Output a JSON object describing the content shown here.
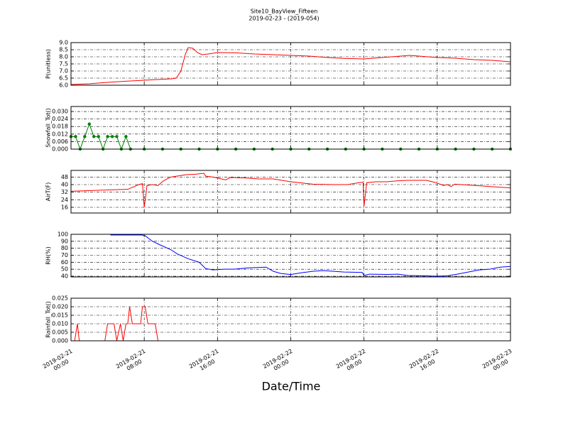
{
  "chart_data": [
    {
      "type": "line",
      "title": "Site10_BayView_Fifteen",
      "subtitle": "2019-02-23 - (2019-054)",
      "ylabel": "P(unitless)",
      "color": "#ff0000",
      "x": [
        "2019-02-21 00:00",
        "2019-02-21 02:00",
        "2019-02-21 04:00",
        "2019-02-21 06:00",
        "2019-02-21 08:00",
        "2019-02-21 10:00",
        "2019-02-21 11:00",
        "2019-02-21 11:30",
        "2019-02-21 12:00",
        "2019-02-21 12:30",
        "2019-02-21 12:48",
        "2019-02-21 13:18",
        "2019-02-21 13:48",
        "2019-02-21 14:18",
        "2019-02-21 15:00",
        "2019-02-21 16:00",
        "2019-02-21 18:00",
        "2019-02-21 20:00",
        "2019-02-21 22:00",
        "2019-02-22 00:00",
        "2019-02-22 02:00",
        "2019-02-22 04:00",
        "2019-02-22 06:00",
        "2019-02-22 08:00",
        "2019-02-22 10:00",
        "2019-02-22 12:00",
        "2019-02-22 13:00",
        "2019-02-22 14:00",
        "2019-02-22 16:00",
        "2019-02-22 18:00",
        "2019-02-22 20:00",
        "2019-02-22 22:00",
        "2019-02-23 00:00"
      ],
      "values": [
        6.05,
        6.1,
        6.2,
        6.28,
        6.35,
        6.42,
        6.45,
        6.5,
        7.0,
        8.2,
        8.65,
        8.6,
        8.3,
        8.15,
        8.2,
        8.3,
        8.28,
        8.2,
        8.15,
        8.1,
        8.05,
        7.95,
        7.88,
        7.85,
        7.95,
        8.05,
        8.1,
        8.05,
        7.95,
        7.9,
        7.8,
        7.75,
        7.65
      ],
      "ylim": [
        6,
        9
      ],
      "yticks": [
        {
          "value": 6,
          "label": "6.0"
        },
        {
          "value": 6.5,
          "label": "6.5"
        },
        {
          "value": 7,
          "label": "7.0"
        },
        {
          "value": 7.5,
          "label": "7.5"
        },
        {
          "value": 8,
          "label": "8.0"
        },
        {
          "value": 8.5,
          "label": "8.5"
        },
        {
          "value": 9,
          "label": "9.0"
        }
      ],
      "grid": true
    },
    {
      "type": "line",
      "ylabel": "Snowfall_Tot()",
      "color": "#008000",
      "marker": "o",
      "x": [
        "2019-02-21 00:00",
        "2019-02-21 00:30",
        "2019-02-21 01:00",
        "2019-02-21 01:30",
        "2019-02-21 02:00",
        "2019-02-21 02:30",
        "2019-02-21 03:00",
        "2019-02-21 03:30",
        "2019-02-21 04:00",
        "2019-02-21 04:30",
        "2019-02-21 05:00",
        "2019-02-21 05:30",
        "2019-02-21 06:00",
        "2019-02-21 06:30",
        "2019-02-21 08:00",
        "2019-02-21 10:00",
        "2019-02-21 12:00",
        "2019-02-21 14:00",
        "2019-02-21 16:00",
        "2019-02-21 18:00",
        "2019-02-21 20:00",
        "2019-02-21 22:00",
        "2019-02-22 00:00",
        "2019-02-22 02:00",
        "2019-02-22 04:00",
        "2019-02-22 06:00",
        "2019-02-22 08:00",
        "2019-02-22 10:00",
        "2019-02-22 12:00",
        "2019-02-22 14:00",
        "2019-02-22 16:00",
        "2019-02-22 18:00",
        "2019-02-22 20:00",
        "2019-02-22 22:00",
        "2019-02-23 00:00"
      ],
      "values": [
        0.01,
        0.01,
        0,
        0.01,
        0.02,
        0.01,
        0.01,
        0,
        0.01,
        0.01,
        0.01,
        0,
        0.01,
        0,
        0,
        0,
        0,
        0,
        0,
        0,
        0,
        0,
        0,
        0,
        0,
        0,
        0,
        0,
        0,
        0,
        0,
        0,
        0,
        0,
        0
      ],
      "ylim": [
        0,
        0.034
      ],
      "yticks": [
        {
          "value": 0,
          "label": "0.000"
        },
        {
          "value": 0.006,
          "label": "0.006"
        },
        {
          "value": 0.012,
          "label": "0.012"
        },
        {
          "value": 0.018,
          "label": "0.018"
        },
        {
          "value": 0.024,
          "label": "0.024"
        },
        {
          "value": 0.03,
          "label": "0.030"
        }
      ],
      "grid": true
    },
    {
      "type": "line",
      "ylabel": "AirT(F)",
      "color": "#ff0000",
      "x": [
        "2019-02-21 00:00",
        "2019-02-21 06:12",
        "2019-02-21 07:24",
        "2019-02-21 07:48",
        "2019-02-21 08:00",
        "2019-02-21 08:18",
        "2019-02-21 08:54",
        "2019-02-21 09:30",
        "2019-02-21 10:06",
        "2019-02-21 10:54",
        "2019-02-21 11:36",
        "2019-02-21 12:36",
        "2019-02-21 13:36",
        "2019-02-21 14:30",
        "2019-02-21 14:42",
        "2019-02-21 15:30",
        "2019-02-21 16:54",
        "2019-02-21 17:24",
        "2019-02-21 19:00",
        "2019-02-21 20:30",
        "2019-02-21 22:06",
        "2019-02-22 00:00",
        "2019-02-22 02:24",
        "2019-02-22 04:42",
        "2019-02-22 06:12",
        "2019-02-22 07:24",
        "2019-02-22 07:54",
        "2019-02-22 08:00",
        "2019-02-22 08:18",
        "2019-02-22 09:18",
        "2019-02-22 10:30",
        "2019-02-22 11:42",
        "2019-02-22 12:48",
        "2019-02-22 14:48",
        "2019-02-22 15:54",
        "2019-02-22 16:42",
        "2019-02-22 17:06",
        "2019-02-22 17:30",
        "2019-02-22 17:54",
        "2019-02-22 19:24",
        "2019-02-22 21:00",
        "2019-02-22 22:30",
        "2019-02-23 00:00"
      ],
      "values": [
        33,
        35,
        40,
        41,
        16,
        39,
        40,
        39,
        44,
        48,
        49,
        50.5,
        51,
        52,
        49,
        48,
        45,
        47.5,
        47,
        46,
        46,
        43,
        40.5,
        40,
        40,
        42,
        42.5,
        17,
        42,
        43,
        43,
        44,
        44.5,
        44.5,
        42,
        39,
        40,
        38,
        40.5,
        39.5,
        38.5,
        37.5,
        36.5
      ],
      "ylim": [
        10,
        55
      ],
      "yticks": [
        16,
        24,
        32,
        40,
        48
      ],
      "grid": true
    },
    {
      "type": "line",
      "ylabel": "RH(%)",
      "color": "#0000ff",
      "x": [
        "2019-02-21 04:18",
        "2019-02-21 07:45",
        "2019-02-21 08:06",
        "2019-02-21 08:54",
        "2019-02-21 09:42",
        "2019-02-21 10:54",
        "2019-02-21 11:36",
        "2019-02-21 12:48",
        "2019-02-21 14:00",
        "2019-02-21 14:42",
        "2019-02-21 15:30",
        "2019-02-21 16:42",
        "2019-02-21 17:48",
        "2019-02-21 19:24",
        "2019-02-21 21:18",
        "2019-02-21 22:06",
        "2019-02-21 22:54",
        "2019-02-22 00:00",
        "2019-02-22 01:12",
        "2019-02-22 02:24",
        "2019-02-22 03:30",
        "2019-02-22 04:42",
        "2019-02-22 05:48",
        "2019-02-22 07:48",
        "2019-02-22 08:00",
        "2019-02-22 08:36",
        "2019-02-22 10:30",
        "2019-02-22 11:42",
        "2019-02-22 12:48",
        "2019-02-22 14:48",
        "2019-02-22 15:54",
        "2019-02-22 17:06",
        "2019-02-22 18:12",
        "2019-02-22 19:24",
        "2019-02-22 20:36",
        "2019-02-22 21:42",
        "2019-02-22 22:54",
        "2019-02-23 00:00"
      ],
      "values": [
        99,
        99,
        98,
        90,
        85,
        78,
        72,
        65,
        60,
        51,
        49,
        50,
        50,
        52,
        53,
        47,
        44,
        42.5,
        45,
        47,
        48,
        47,
        46,
        45.5,
        41,
        43,
        42.5,
        43,
        41,
        40.5,
        40,
        40.5,
        43,
        46,
        49,
        50,
        53,
        54
      ],
      "ylim": [
        39,
        100
      ],
      "yticks": [
        40,
        50,
        60,
        70,
        80,
        90,
        100
      ],
      "grid": true
    },
    {
      "type": "line",
      "ylabel": "Rainfall_Tot()",
      "xlabel": "Date/Time",
      "color": "#ff0000",
      "x": [
        "2019-02-21 00:00",
        "2019-02-21 00:24",
        "2019-02-21 00:42",
        "2019-02-21 00:54",
        "2019-02-21 03:42",
        "2019-02-21 04:00",
        "2019-02-21 04:42",
        "2019-02-21 05:00",
        "2019-02-21 05:24",
        "2019-02-21 05:42",
        "2019-02-21 06:00",
        "2019-02-21 06:12",
        "2019-02-21 06:24",
        "2019-02-21 06:42",
        "2019-02-21 07:36",
        "2019-02-21 07:48",
        "2019-02-21 08:06",
        "2019-02-21 08:24",
        "2019-02-21 09:12",
        "2019-02-21 09:30",
        "2019-02-23 00:00"
      ],
      "values": [
        0,
        0,
        0.01,
        0,
        0,
        0.01,
        0.01,
        0,
        0.01,
        0,
        0.01,
        0.01,
        0.02,
        0.01,
        0.01,
        0.02,
        0.02,
        0.01,
        0.01,
        0,
        0
      ],
      "ylim": [
        0,
        0.025
      ],
      "yticks": [
        {
          "value": 0,
          "label": "0.000"
        },
        {
          "value": 0.005,
          "label": "0.005"
        },
        {
          "value": 0.01,
          "label": "0.010"
        },
        {
          "value": 0.015,
          "label": "0.015"
        },
        {
          "value": 0.02,
          "label": "0.020"
        },
        {
          "value": 0.025,
          "label": "0.025"
        }
      ],
      "xlim": [
        "2019-02-21 00:00",
        "2019-02-23 00:00"
      ],
      "xticks": [
        "2019-02-21 00:00",
        "2019-02-21 08:00",
        "2019-02-21 16:00",
        "2019-02-22 00:00",
        "2019-02-22 08:00",
        "2019-02-22 16:00",
        "2019-02-23 00:00"
      ],
      "grid": true
    }
  ]
}
